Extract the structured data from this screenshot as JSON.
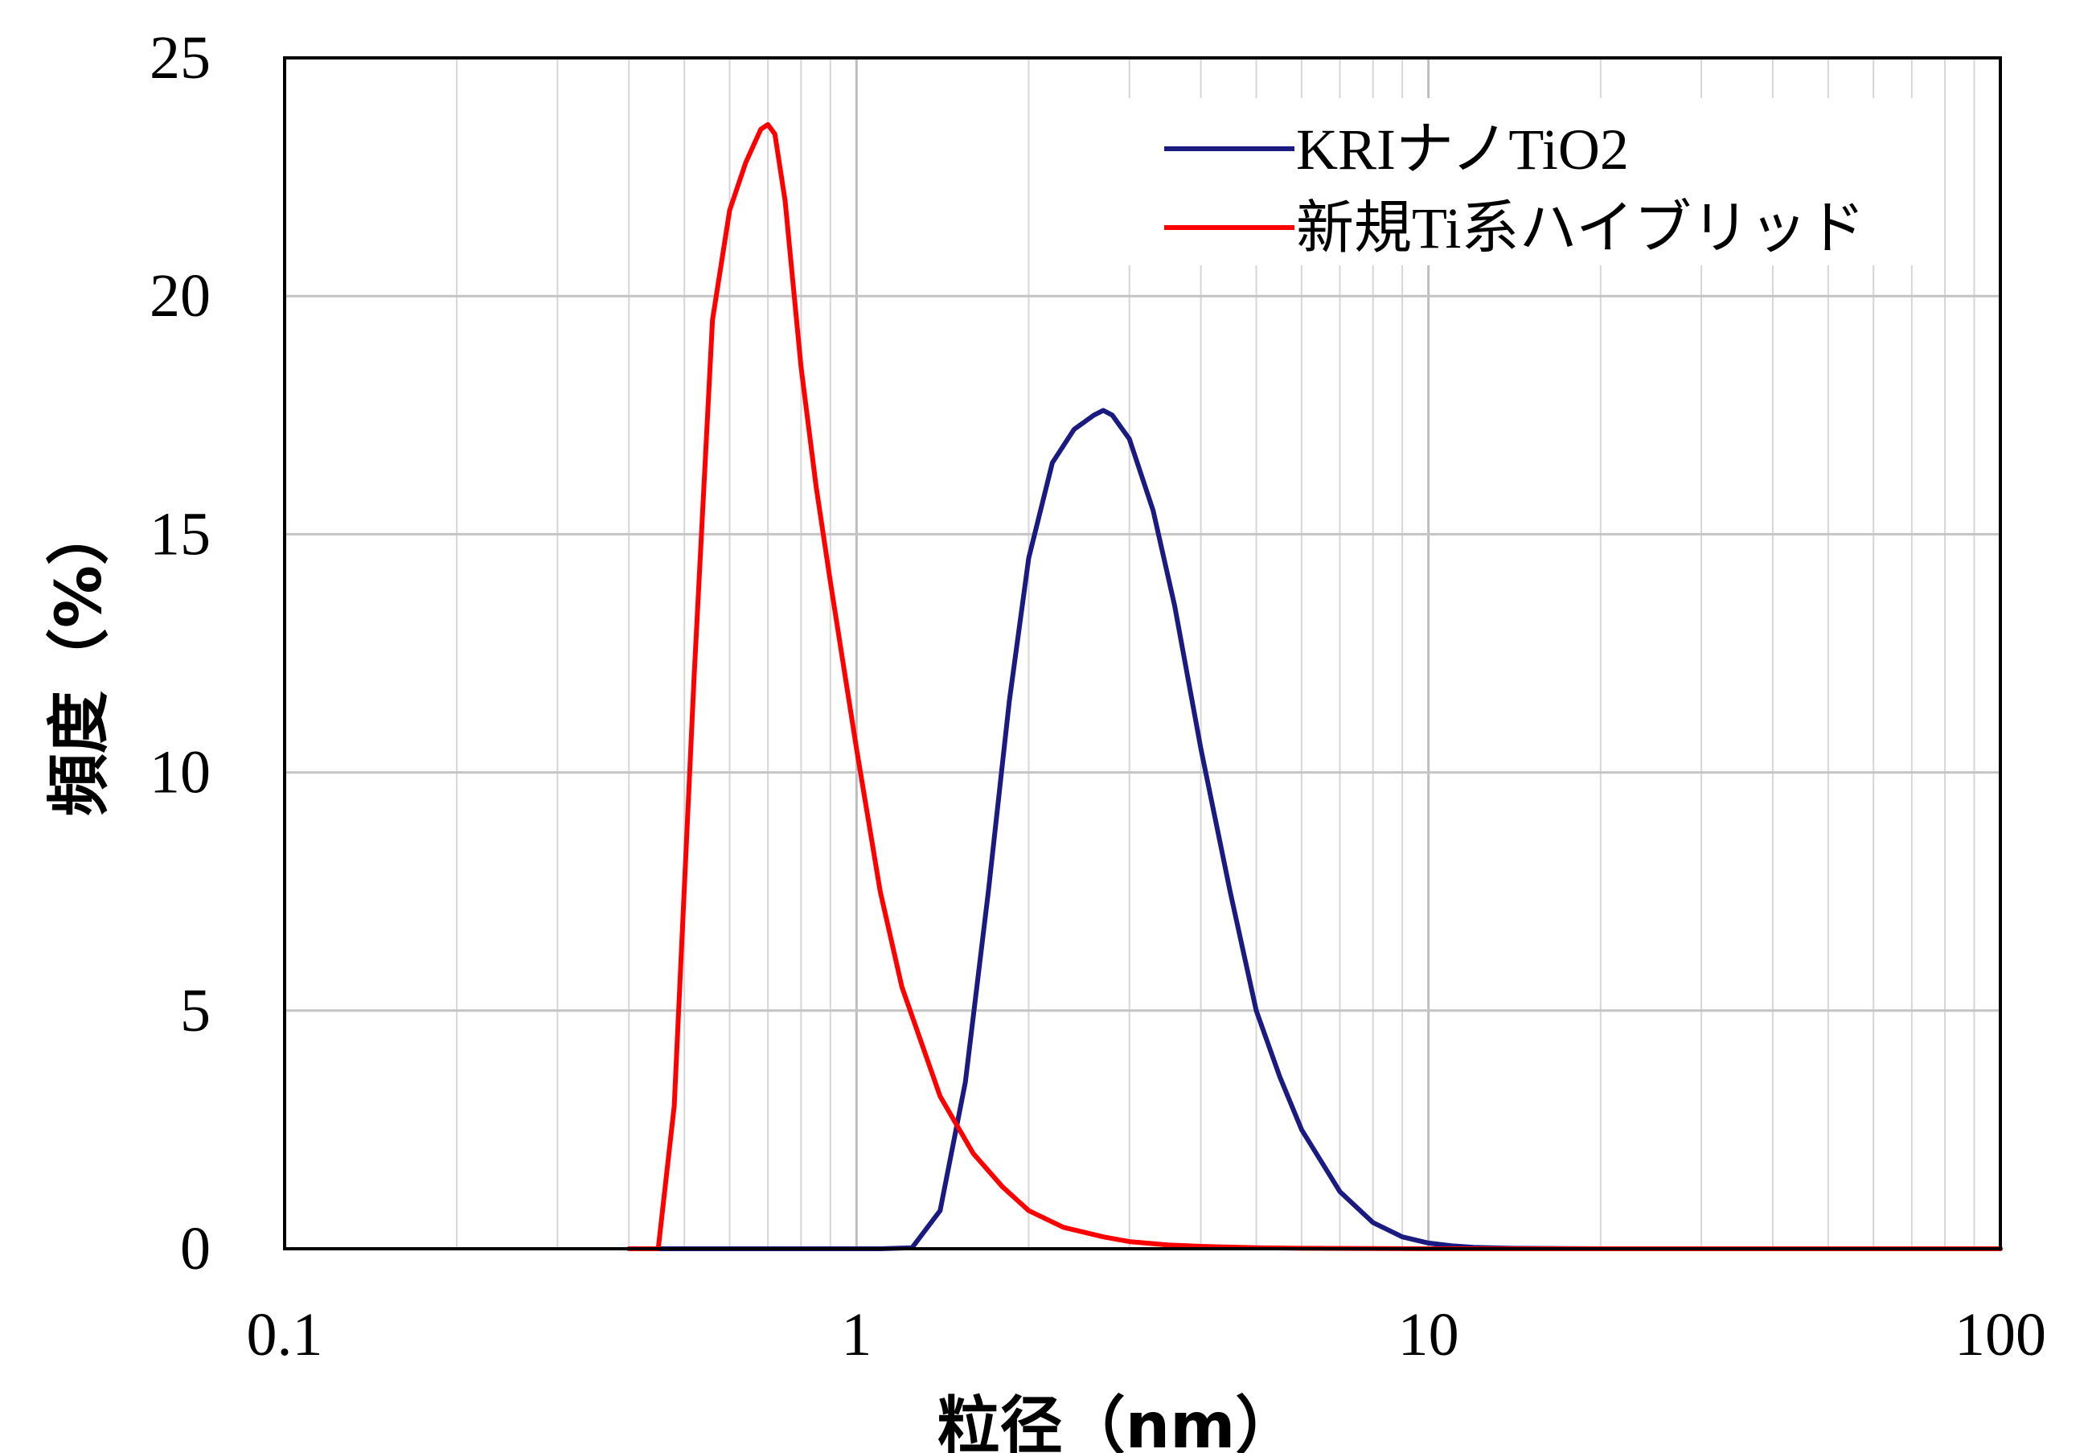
{
  "chart_data": {
    "type": "line",
    "title": "",
    "xlabel": "粒径（nm）",
    "ylabel": "頻度（%）",
    "xscale": "log",
    "xlim": [
      0.1,
      100
    ],
    "ylim": [
      0,
      25
    ],
    "x_ticks": [
      "0.1",
      "1",
      "10",
      "100"
    ],
    "y_ticks": [
      "0",
      "5",
      "10",
      "15",
      "20",
      "25"
    ],
    "grid": true,
    "legend_position": "top-right",
    "series": [
      {
        "name": "KRIナノTiO2",
        "color": "#1a1a80",
        "x": [
          0.4,
          1.0,
          1.1,
          1.25,
          1.4,
          1.55,
          1.7,
          1.85,
          2.0,
          2.2,
          2.4,
          2.6,
          2.7,
          2.8,
          3.0,
          3.3,
          3.6,
          4.0,
          4.5,
          5.0,
          5.5,
          6.0,
          7.0,
          8.0,
          9.0,
          10.0,
          11.0,
          12.0,
          14.0,
          20.0,
          100.0
        ],
        "y": [
          0,
          0,
          0,
          0.02,
          0.8,
          3.5,
          7.5,
          11.5,
          14.5,
          16.5,
          17.2,
          17.5,
          17.6,
          17.5,
          17.0,
          15.5,
          13.5,
          10.5,
          7.5,
          5.0,
          3.6,
          2.5,
          1.2,
          0.55,
          0.25,
          0.12,
          0.06,
          0.03,
          0.01,
          0,
          0
        ]
      },
      {
        "name": "新規Ti系ハイブリッド",
        "color": "#ff0000",
        "x": [
          0.4,
          0.45,
          0.48,
          0.52,
          0.56,
          0.6,
          0.64,
          0.68,
          0.7,
          0.72,
          0.75,
          0.8,
          0.85,
          0.9,
          1.0,
          1.1,
          1.2,
          1.4,
          1.6,
          1.8,
          2.0,
          2.3,
          2.7,
          3.0,
          3.5,
          4.0,
          5.0,
          6.0,
          10.0,
          100.0
        ],
        "y": [
          0,
          0,
          3.0,
          12.0,
          19.5,
          21.8,
          22.8,
          23.5,
          23.6,
          23.4,
          22.0,
          18.5,
          16.0,
          14.0,
          10.5,
          7.5,
          5.5,
          3.2,
          2.0,
          1.3,
          0.8,
          0.45,
          0.25,
          0.15,
          0.08,
          0.05,
          0.02,
          0.01,
          0,
          0
        ]
      }
    ]
  }
}
